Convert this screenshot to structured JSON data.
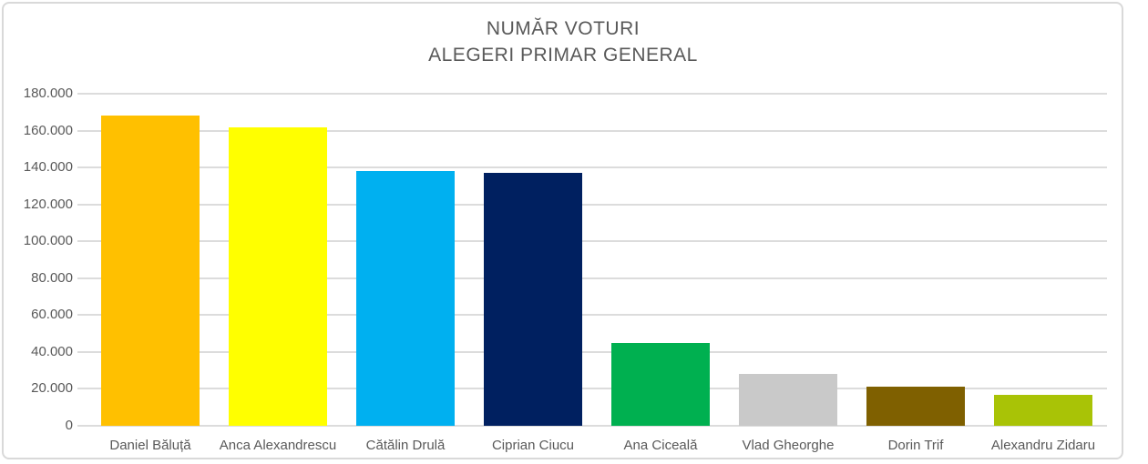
{
  "chart": {
    "title_line1": "NUMĂR VOTURI",
    "title_line2": "ALEGERI PRIMAR GENERAL",
    "frame_border_color": "#D9D9D9",
    "gridline_color": "#DCDCDC",
    "text_color": "#595959",
    "background_color": "#FFFFFF"
  },
  "chart_data": {
    "type": "bar",
    "title": "NUMĂR VOTURI",
    "subtitle": "ALEGERI PRIMAR GENERAL",
    "xlabel": "",
    "ylabel": "",
    "categories": [
      "Daniel Băluță",
      "Anca Alexandrescu",
      "Cătălin Drulă",
      "Ciprian Ciucu",
      "Ana Ciceală",
      "Vlad Gheorghe",
      "Dorin Trif",
      "Alexandru Zidaru"
    ],
    "values": [
      168000,
      162000,
      138000,
      137000,
      45000,
      28000,
      21000,
      17000
    ],
    "bar_colors": [
      "#FFC000",
      "#FFFF00",
      "#00B0F0",
      "#002060",
      "#00B050",
      "#C9C9C9",
      "#7F6000",
      "#A9C306"
    ],
    "ylim": [
      0,
      180000
    ],
    "y_tick_interval": 20000,
    "y_tick_labels": [
      "0",
      "20.000",
      "40.000",
      "60.000",
      "80.000",
      "100.000",
      "120.000",
      "140.000",
      "160.000",
      "180.000"
    ],
    "grid": true,
    "legend": "none"
  }
}
